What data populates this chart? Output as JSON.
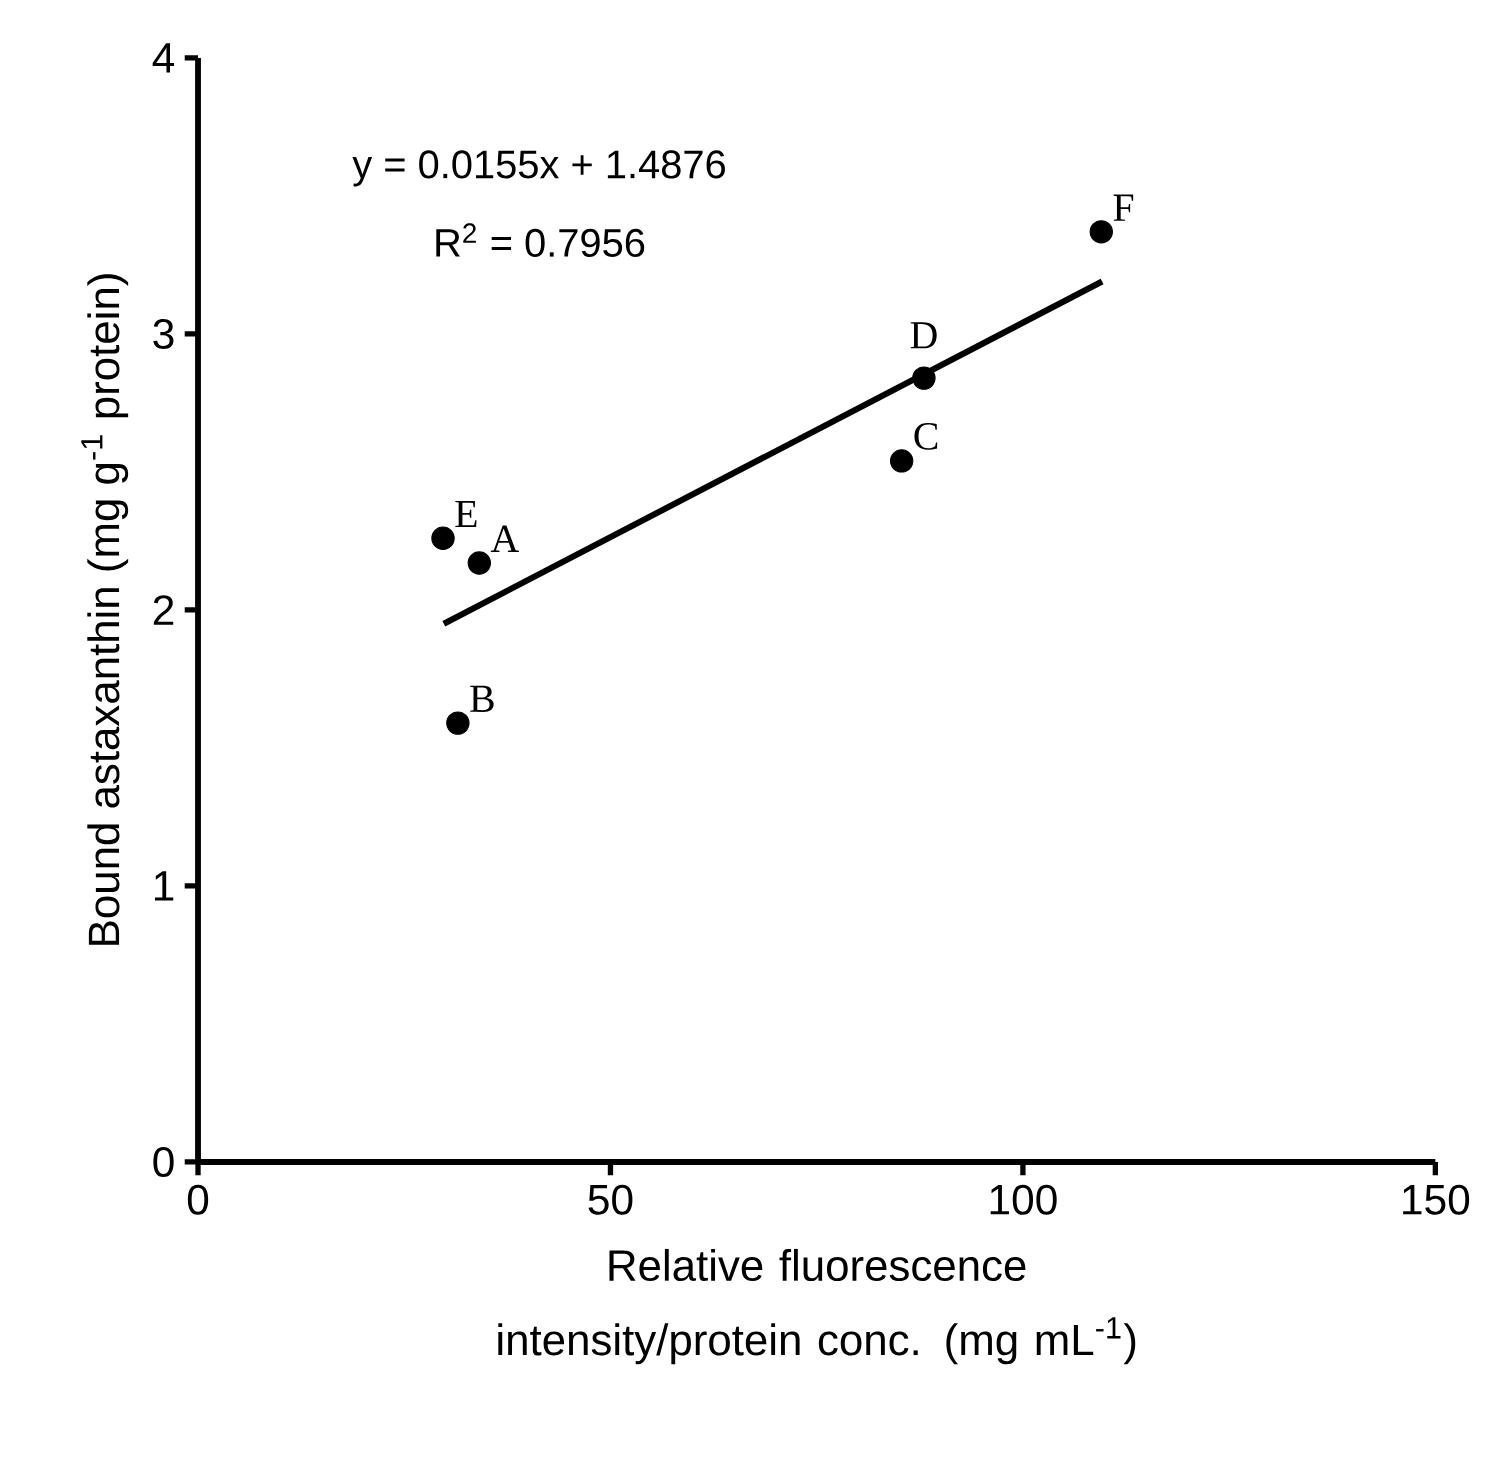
{
  "chart_data": {
    "type": "scatter",
    "xlabel": "Relative fluorescence intensity/protein conc. (mg mL$^{-1}$)",
    "ylabel": "Bound astaxanthin (mg g$^{-1}$ protein)",
    "xlim": [
      0,
      150
    ],
    "ylim": [
      0,
      4
    ],
    "xticks": [
      0,
      50,
      100,
      150
    ],
    "yticks": [
      0,
      1,
      2,
      3,
      4
    ],
    "grid": false,
    "series": [
      {
        "marker": "circle",
        "color": "#000000",
        "x": [
          34.1,
          31.5,
          85.3,
          88.0,
          29.7,
          109.5
        ],
        "values": [
          2.17,
          1.59,
          2.54,
          2.84,
          2.26,
          3.37
        ]
      },
      {
        "type": "line",
        "marker": "none",
        "color": "#000000",
        "x": [
          29.8,
          109.6
        ],
        "values": [
          1.95,
          3.19
        ]
      }
    ],
    "annotations": [
      "y = 0.0155x + 1.4876",
      "R$^{2}$ = 0.7956",
      {
        "text": "A",
        "x": 34.1,
        "y": 2.17
      },
      {
        "text": "B",
        "x": 31.5,
        "y": 1.59
      },
      {
        "text": "C",
        "x": 85.3,
        "y": 2.54
      },
      {
        "text": "D",
        "x": 88.0,
        "y": 2.84
      },
      {
        "text": "E",
        "x": 29.7,
        "y": 2.26
      },
      {
        "text": "F",
        "x": 109.5,
        "y": 3.37
      }
    ]
  }
}
